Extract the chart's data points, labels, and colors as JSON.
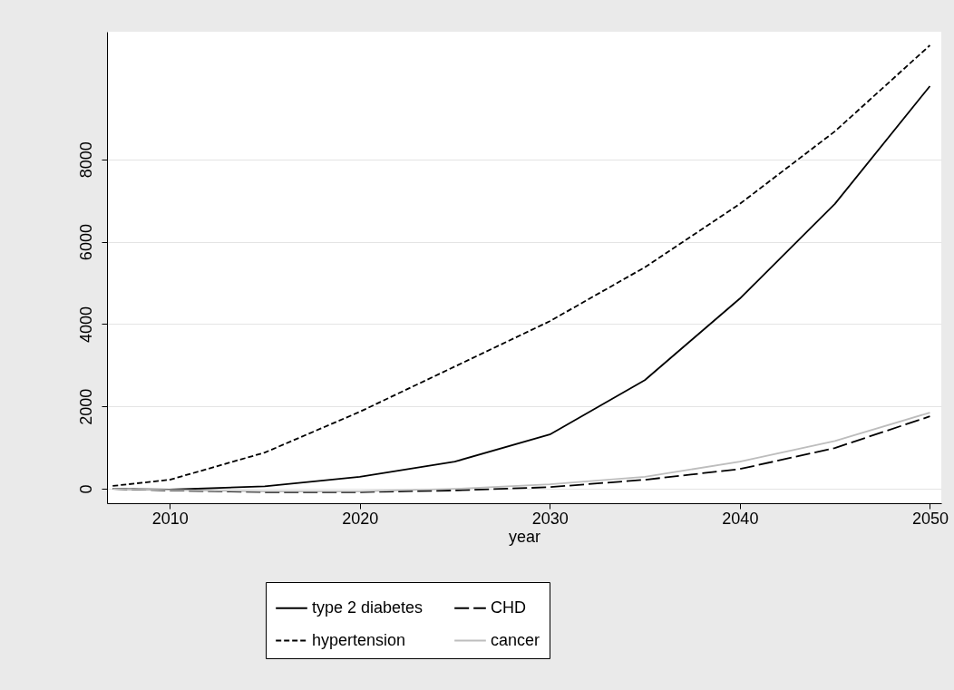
{
  "chart_data": {
    "type": "line",
    "xlabel": "year",
    "x": [
      2007,
      2010,
      2015,
      2020,
      2025,
      2030,
      2035,
      2040,
      2045,
      2050
    ],
    "xlim": [
      2006.7,
      2050.6
    ],
    "xticks": [
      2010,
      2020,
      2030,
      2040,
      2050
    ],
    "ylim": [
      -350,
      11100
    ],
    "yticks": [
      0,
      2000,
      4000,
      6000,
      8000
    ],
    "grid": "y",
    "legend": "bottom",
    "marker": "none",
    "series": [
      {
        "name": "type 2 diabetes",
        "color": "#000000",
        "line_style": "solid",
        "values": [
          0,
          -20,
          60,
          290,
          660,
          1320,
          2640,
          4620,
          6920,
          9780
        ]
      },
      {
        "name": "CHD",
        "color": "#000000",
        "line_style": "longdash",
        "values": [
          0,
          -40,
          -80,
          -80,
          -40,
          40,
          220,
          480,
          990,
          1760
        ]
      },
      {
        "name": "hypertension",
        "color": "#000000",
        "line_style": "dashed",
        "values": [
          70,
          220,
          880,
          1870,
          2970,
          4070,
          5380,
          6920,
          8680,
          10770
        ]
      },
      {
        "name": "cancer",
        "color": "#bdbdbd",
        "line_style": "solid",
        "values": [
          0,
          -30,
          -60,
          -60,
          0,
          110,
          290,
          660,
          1160,
          1850
        ]
      }
    ]
  }
}
